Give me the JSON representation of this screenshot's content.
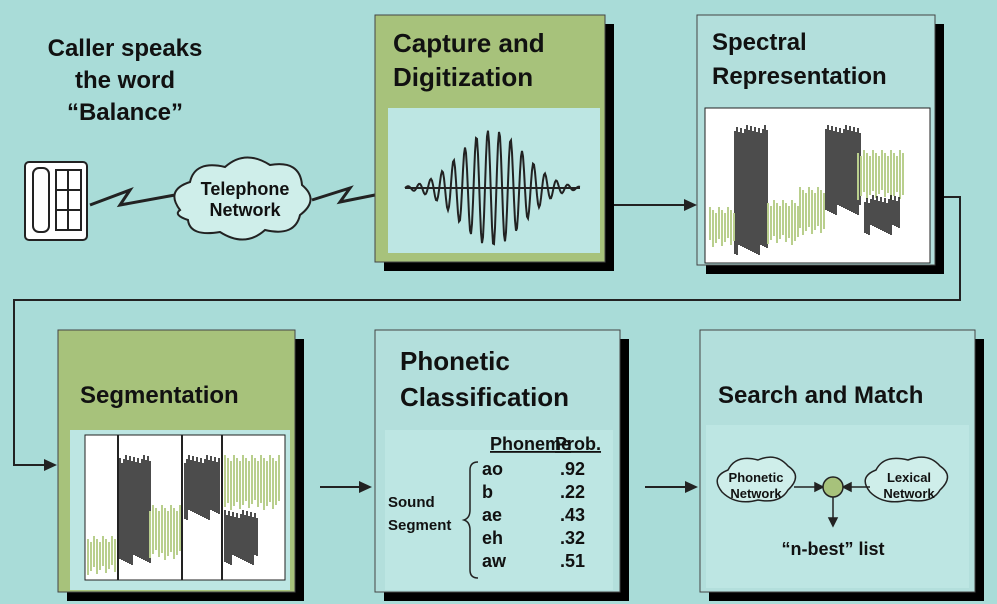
{
  "caller": {
    "lines": [
      "Caller speaks",
      "the word",
      "“Balance”"
    ]
  },
  "telephone_network": {
    "lines": [
      "Telephone",
      "Network"
    ]
  },
  "capture": {
    "title_lines": [
      "Capture and",
      "Digitization"
    ]
  },
  "spectral": {
    "title_lines": [
      "Spectral",
      "Representation"
    ]
  },
  "segmentation": {
    "title": "Segmentation"
  },
  "phonetic": {
    "title_lines": [
      "Phonetic",
      "Classification"
    ],
    "headers": [
      "Phoneme",
      "Prob."
    ],
    "row_label_lines": [
      "Sound",
      "Segment"
    ],
    "rows": [
      [
        "ao",
        ".92"
      ],
      [
        "b",
        ".22"
      ],
      [
        "ae",
        ".43"
      ],
      [
        "eh",
        ".32"
      ],
      [
        "aw",
        ".51"
      ]
    ]
  },
  "search": {
    "title": "Search and Match",
    "phonetic_network": [
      "Phonetic",
      "Network"
    ],
    "lexical_network": [
      "Lexical",
      "Network"
    ],
    "result": "“n-best” list"
  }
}
